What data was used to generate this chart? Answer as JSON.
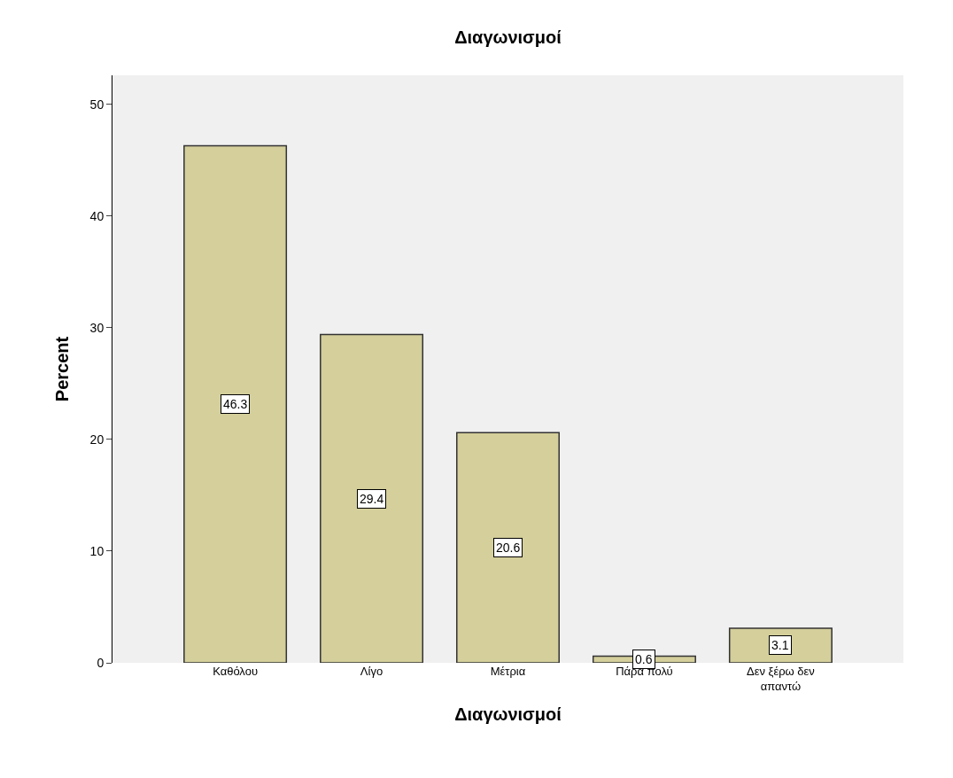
{
  "chart_data": {
    "type": "bar",
    "title": "Διαγωνισμοί",
    "xlabel": "Διαγωνισμοί",
    "ylabel": "Percent",
    "categories": [
      "Καθόλου",
      "Λίγο",
      "Μέτρια",
      "Πάρα πολύ",
      "Δεν ξέρω δεν απαντώ"
    ],
    "values": [
      46.3,
      29.4,
      20.6,
      0.6,
      3.1
    ],
    "color": "#d4cf9b",
    "ylim": [
      0,
      52.6
    ],
    "yticks": [
      0,
      10,
      20,
      30,
      40,
      50
    ],
    "grid": false,
    "data_labels": true
  }
}
